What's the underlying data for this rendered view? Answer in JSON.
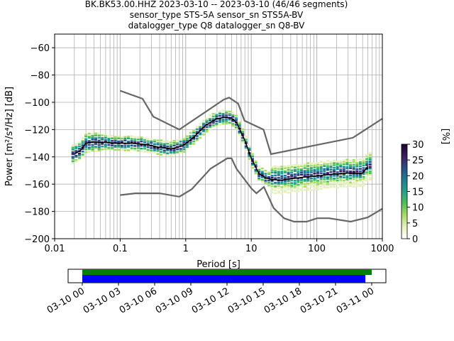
{
  "title_lines": [
    "BK.BK53.00.HHZ   2023-03-10 -- 2023-03-10  (46/46 segments)",
    "sensor_type STS-5A sensor_sn STS5A-BV",
    "datalogger_type Q8 datalogger_sn Q8-BV"
  ],
  "chart_data": {
    "type": "line",
    "title": "BK.BK53.00.HHZ   2023-03-10 -- 2023-03-10  (46/46 segments)",
    "xlabel": "Period [s]",
    "ylabel": "Power [m²/s⁴/Hz] [dB]",
    "xscale": "log",
    "xlim": [
      0.01,
      1000
    ],
    "ylim": [
      -200,
      -50
    ],
    "grid": true,
    "x_ticks": [
      {
        "value": 0.01,
        "label": "0.01"
      },
      {
        "value": 0.1,
        "label": "0.1"
      },
      {
        "value": 1,
        "label": "1"
      },
      {
        "value": 10,
        "label": "10"
      },
      {
        "value": 100,
        "label": "100"
      },
      {
        "value": 1000,
        "label": "1000"
      }
    ],
    "y_ticks": [
      {
        "value": -60,
        "label": "−60"
      },
      {
        "value": -80,
        "label": "−80"
      },
      {
        "value": -100,
        "label": "−100"
      },
      {
        "value": -120,
        "label": "−120"
      },
      {
        "value": -140,
        "label": "−140"
      },
      {
        "value": -160,
        "label": "−160"
      },
      {
        "value": -180,
        "label": "−180"
      },
      {
        "value": -200,
        "label": "−200"
      }
    ],
    "series": [
      {
        "key": "nhnm",
        "color": "#666666",
        "x": [
          0.1,
          0.22,
          0.32,
          0.8,
          3.8,
          4.6,
          6.3,
          7.9,
          15.4,
          20,
          354.8,
          1000
        ],
        "y": [
          -91.5,
          -97.4,
          -110.5,
          -120,
          -98,
          -96.5,
          -101,
          -113.5,
          -120,
          -138,
          -126,
          -112
        ]
      },
      {
        "key": "nlnm",
        "color": "#666666",
        "x": [
          0.1,
          0.17,
          0.4,
          0.8,
          1.24,
          2.4,
          4.3,
          5,
          6,
          10,
          12,
          15.6,
          21.9,
          31.6,
          45,
          70,
          101,
          154,
          328,
          600,
          1000
        ],
        "y": [
          -168,
          -166.7,
          -166.7,
          -169.2,
          -163.7,
          -148.6,
          -141.1,
          -141.1,
          -149,
          -163,
          -166.7,
          -162.1,
          -177.5,
          -185,
          -187.5,
          -187.5,
          -185,
          -185,
          -187.5,
          -184.4,
          -178
        ]
      },
      {
        "key": "mode",
        "color": "#000000",
        "x": [
          0.02,
          0.025,
          0.03,
          0.04,
          0.06,
          0.1,
          0.15,
          0.25,
          0.4,
          0.6,
          0.9,
          1.3,
          2,
          3,
          4,
          5,
          6,
          8,
          10,
          13,
          16,
          20,
          25,
          30,
          40,
          60,
          100,
          150,
          300,
          500,
          600
        ],
        "y": [
          -138,
          -135,
          -130,
          -129,
          -129.5,
          -130,
          -130,
          -131,
          -133,
          -134,
          -132,
          -126,
          -117,
          -112,
          -111,
          -111.5,
          -115,
          -128,
          -141,
          -152,
          -155,
          -156.5,
          -157,
          -157,
          -156,
          -155,
          -154,
          -153,
          -152,
          -152,
          -147
        ]
      }
    ],
    "colorbar": {
      "label": "[%]",
      "min": 0,
      "max": 30,
      "ticks": [
        0,
        5,
        10,
        15,
        20,
        25,
        30
      ],
      "colors": [
        "#ffffff",
        "#e6f0bf",
        "#a8dc63",
        "#4fbf5a",
        "#24a08a",
        "#207c92",
        "#2d4d8a",
        "#3b1b5e",
        "#1a0530"
      ]
    },
    "time_axis": {
      "labels": [
        "03-10 00",
        "03-10 03",
        "03-10 06",
        "03-10 09",
        "03-10 12",
        "03-10 15",
        "03-10 18",
        "03-10 21",
        "03-11 00"
      ],
      "coverage_colors": [
        "#008000",
        "#0000ff"
      ]
    }
  }
}
